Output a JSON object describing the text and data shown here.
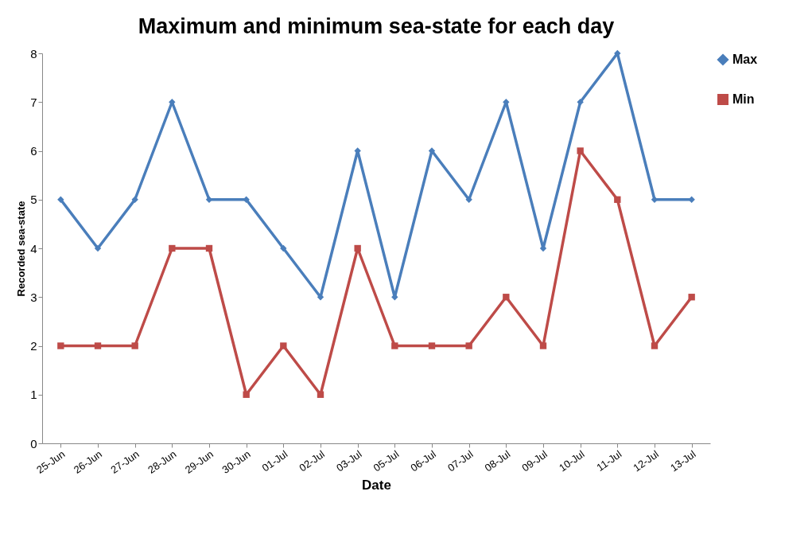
{
  "chart_data": {
    "type": "line",
    "title": "Maximum and minimum sea-state for each day",
    "xlabel": "Date",
    "ylabel": "Recorded sea-state",
    "categories": [
      "25-Jun",
      "26-Jun",
      "27-Jun",
      "28-Jun",
      "29-Jun",
      "30-Jun",
      "01-Jul",
      "02-Jul",
      "03-Jul",
      "05-Jul",
      "06-Jul",
      "07-Jul",
      "08-Jul",
      "09-Jul",
      "10-Jul",
      "11-Jul",
      "12-Jul",
      "13-Jul"
    ],
    "series": [
      {
        "name": "Max",
        "color": "#4a7ebb",
        "marker": "diamond",
        "values": [
          5,
          4,
          5,
          7,
          5,
          5,
          4,
          3,
          6,
          3,
          6,
          5,
          7,
          4,
          7,
          8,
          5,
          5
        ]
      },
      {
        "name": "Min",
        "color": "#be4b48",
        "marker": "square",
        "values": [
          2,
          2,
          2,
          4,
          4,
          1,
          2,
          1,
          4,
          2,
          2,
          2,
          3,
          2,
          6,
          5,
          2,
          3
        ]
      }
    ],
    "ylim": [
      0,
      8
    ],
    "yticks": [
      0,
      1,
      2,
      3,
      4,
      5,
      6,
      7,
      8
    ],
    "grid": false,
    "legend": "top right",
    "line_style": "solid"
  }
}
